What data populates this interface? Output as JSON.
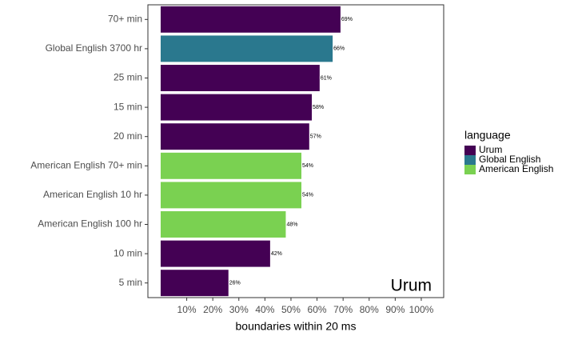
{
  "chart_data": {
    "type": "bar",
    "orientation": "horizontal",
    "categories": [
      "70+ min",
      "Global English 3700 hr",
      "25 min",
      "15 min",
      "20 min",
      "American English 70+ min",
      "American English 10 hr",
      "American English 100 hr",
      "10 min",
      "5 min"
    ],
    "series": [
      {
        "name": "Urum",
        "color": "#440154",
        "values": [
          69,
          null,
          61,
          58,
          57,
          null,
          null,
          null,
          42,
          26
        ],
        "value_labels": [
          "69%",
          null,
          "61%",
          "58%",
          "57%",
          null,
          null,
          null,
          "42%",
          "26%"
        ]
      },
      {
        "name": "Global English",
        "color": "#2a788e",
        "values": [
          null,
          66,
          null,
          null,
          null,
          null,
          null,
          null,
          null,
          null
        ],
        "value_labels": [
          null,
          "66%",
          null,
          null,
          null,
          null,
          null,
          null,
          null,
          null
        ]
      },
      {
        "name": "American English",
        "color": "#7ad151",
        "values": [
          null,
          null,
          null,
          null,
          null,
          54,
          54,
          48,
          null,
          null
        ],
        "value_labels": [
          null,
          null,
          null,
          null,
          null,
          "54%",
          "54%",
          "48%",
          null,
          null
        ]
      }
    ],
    "xlabel": "boundaries within 20 ms",
    "xlim": [
      -4.9,
      108.6
    ],
    "xticks": [
      {
        "value": 10,
        "label": "10%"
      },
      {
        "value": 20,
        "label": "20%"
      },
      {
        "value": 30,
        "label": "30%"
      },
      {
        "value": 40,
        "label": "40%"
      },
      {
        "value": 50,
        "label": "50%"
      },
      {
        "value": 60,
        "label": "60%"
      },
      {
        "value": 70,
        "label": "70%"
      },
      {
        "value": 80,
        "label": "80%"
      },
      {
        "value": 90,
        "label": "90%"
      },
      {
        "value": 100,
        "label": "100%"
      }
    ],
    "legend_title": "language",
    "annotation": "Urum"
  }
}
